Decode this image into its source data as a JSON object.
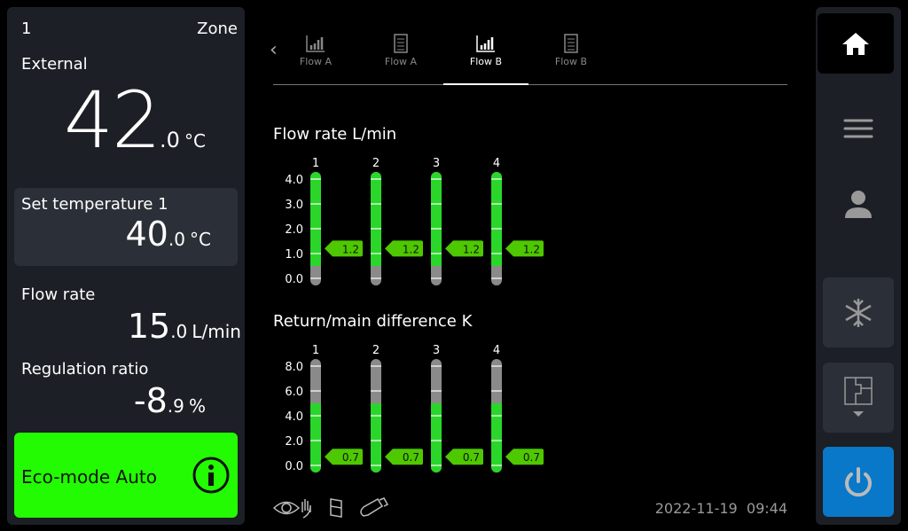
{
  "left": {
    "zone_number": "1",
    "zone_label": "Zone",
    "external_label": "External",
    "external_int": "42",
    "external_dec": ".0",
    "external_unit": "°C",
    "set_temp_label": "Set temperature 1",
    "set_temp_int": "40",
    "set_temp_dec": ".0",
    "set_temp_unit": "°C",
    "flow_label": "Flow rate",
    "flow_int": "15",
    "flow_dec": ".0",
    "flow_unit": "L/min",
    "reg_label": "Regulation ratio",
    "reg_int": "-8",
    "reg_dec": ".9",
    "reg_unit": "%",
    "eco_label": "Eco-mode Auto",
    "eco_color": "#22fb02"
  },
  "tabs": [
    {
      "label": "Flow A",
      "icon": "bar-chart-icon"
    },
    {
      "label": "Flow A",
      "icon": "document-icon"
    },
    {
      "label": "Flow B",
      "icon": "bar-chart-icon",
      "active": true
    },
    {
      "label": "Flow B",
      "icon": "document-icon"
    }
  ],
  "chart_data": [
    {
      "type": "bar",
      "title": "Flow rate L/min",
      "categories": [
        "1",
        "2",
        "3",
        "4"
      ],
      "values": [
        1.2,
        1.2,
        1.2,
        1.2
      ],
      "value_labels": [
        "1.2",
        "1.2",
        "1.2",
        "1.2"
      ],
      "ticks": [
        "0.0",
        "1.0",
        "2.0",
        "3.0",
        "4.0"
      ],
      "ylim": [
        0,
        4
      ],
      "green_range": [
        0.5,
        4.3
      ]
    },
    {
      "type": "bar",
      "title": "Return/main difference K",
      "categories": [
        "1",
        "2",
        "3",
        "4"
      ],
      "values": [
        0.7,
        0.7,
        0.7,
        0.7
      ],
      "value_labels": [
        "0.7",
        "0.7",
        "0.7",
        "0.7"
      ],
      "ticks": [
        "0.0",
        "2.0",
        "4.0",
        "6.0",
        "8.0"
      ],
      "ylim": [
        0,
        8
      ],
      "green_range": [
        -0.6,
        5.0
      ]
    }
  ],
  "colors": {
    "green": "#2ad62a",
    "marker": "#4ec800",
    "gray": "#8a8a8a",
    "accent": "#0a78c8"
  },
  "footer": {
    "date": "2022-11-19",
    "time": "09:44"
  }
}
